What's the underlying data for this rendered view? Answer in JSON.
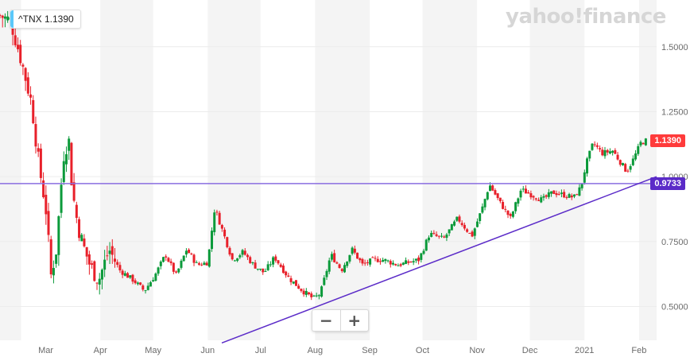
{
  "ticker": {
    "label": "^TNX 1.1390",
    "color": "#5ac8fa"
  },
  "watermark": "yahoo!finance",
  "zoom": {
    "minus": "−",
    "plus": "+"
  },
  "price_tags": {
    "last": {
      "text": "1.1390",
      "value": 1.139,
      "color": "#ff3b3b"
    },
    "line": {
      "text": "0.9733",
      "value": 0.9733,
      "color": "#5b2bc8"
    }
  },
  "colors": {
    "up": "#0b9a3a",
    "down": "#e8202a",
    "level_line": "#8a6ee0",
    "trend_line": "#5b2bc8",
    "shade": "#f4f4f4"
  },
  "chart_data": {
    "type": "candlestick",
    "symbol": "^TNX",
    "y_ticks": [
      {
        "value": 0.5,
        "label": "0.5000"
      },
      {
        "value": 0.75,
        "label": "0.7500"
      },
      {
        "value": 1.0,
        "label": "1.0000"
      },
      {
        "value": 1.25,
        "label": "1.2500"
      },
      {
        "value": 1.5,
        "label": "1.5000"
      }
    ],
    "ylim": [
      0.37,
      1.68
    ],
    "x_ticks": [
      {
        "label": "Mar",
        "day": 0
      },
      {
        "label": "Apr",
        "day": 31
      },
      {
        "label": "May",
        "day": 61
      },
      {
        "label": "Jun",
        "day": 92
      },
      {
        "label": "Jul",
        "day": 122
      },
      {
        "label": "Aug",
        "day": 153
      },
      {
        "label": "Sep",
        "day": 184
      },
      {
        "label": "Oct",
        "day": 214
      },
      {
        "label": "Nov",
        "day": 245
      },
      {
        "label": "Dec",
        "day": 275
      },
      {
        "label": "2021",
        "day": 306
      },
      {
        "label": "Feb",
        "day": 337
      }
    ],
    "xlim": [
      -26,
      347
    ],
    "horizontal_line": 0.9733,
    "trend_line": {
      "from": {
        "day": 100,
        "value": 0.36
      },
      "to": {
        "day": 347,
        "value": 1.0
      }
    },
    "anchors": [
      [
        -26,
        1.62
      ],
      [
        -20,
        1.6
      ],
      [
        -14,
        1.45
      ],
      [
        -8,
        1.28
      ],
      [
        -4,
        1.05
      ],
      [
        0,
        0.88
      ],
      [
        3,
        0.62
      ],
      [
        6,
        0.72
      ],
      [
        10,
        1.08
      ],
      [
        13,
        1.15
      ],
      [
        15,
        0.95
      ],
      [
        18,
        0.82
      ],
      [
        21,
        0.74
      ],
      [
        25,
        0.66
      ],
      [
        30,
        0.6
      ],
      [
        36,
        0.72
      ],
      [
        42,
        0.64
      ],
      [
        50,
        0.6
      ],
      [
        56,
        0.56
      ],
      [
        62,
        0.62
      ],
      [
        68,
        0.7
      ],
      [
        74,
        0.62
      ],
      [
        80,
        0.72
      ],
      [
        86,
        0.66
      ],
      [
        92,
        0.67
      ],
      [
        96,
        0.88
      ],
      [
        100,
        0.8
      ],
      [
        106,
        0.68
      ],
      [
        112,
        0.71
      ],
      [
        118,
        0.66
      ],
      [
        124,
        0.63
      ],
      [
        130,
        0.69
      ],
      [
        138,
        0.61
      ],
      [
        146,
        0.56
      ],
      [
        152,
        0.53
      ],
      [
        156,
        0.55
      ],
      [
        162,
        0.7
      ],
      [
        168,
        0.64
      ],
      [
        174,
        0.72
      ],
      [
        180,
        0.66
      ],
      [
        186,
        0.68
      ],
      [
        192,
        0.68
      ],
      [
        200,
        0.66
      ],
      [
        206,
        0.67
      ],
      [
        212,
        0.68
      ],
      [
        218,
        0.78
      ],
      [
        226,
        0.76
      ],
      [
        234,
        0.84
      ],
      [
        242,
        0.77
      ],
      [
        248,
        0.88
      ],
      [
        252,
        0.97
      ],
      [
        258,
        0.9
      ],
      [
        264,
        0.84
      ],
      [
        270,
        0.95
      ],
      [
        276,
        0.93
      ],
      [
        282,
        0.91
      ],
      [
        288,
        0.94
      ],
      [
        294,
        0.93
      ],
      [
        300,
        0.92
      ],
      [
        304,
        0.96
      ],
      [
        307,
        1.05
      ],
      [
        311,
        1.13
      ],
      [
        316,
        1.09
      ],
      [
        322,
        1.1
      ],
      [
        327,
        1.05
      ],
      [
        330,
        1.02
      ],
      [
        334,
        1.07
      ],
      [
        338,
        1.13
      ],
      [
        341,
        1.139
      ]
    ],
    "last_value": 1.139
  }
}
